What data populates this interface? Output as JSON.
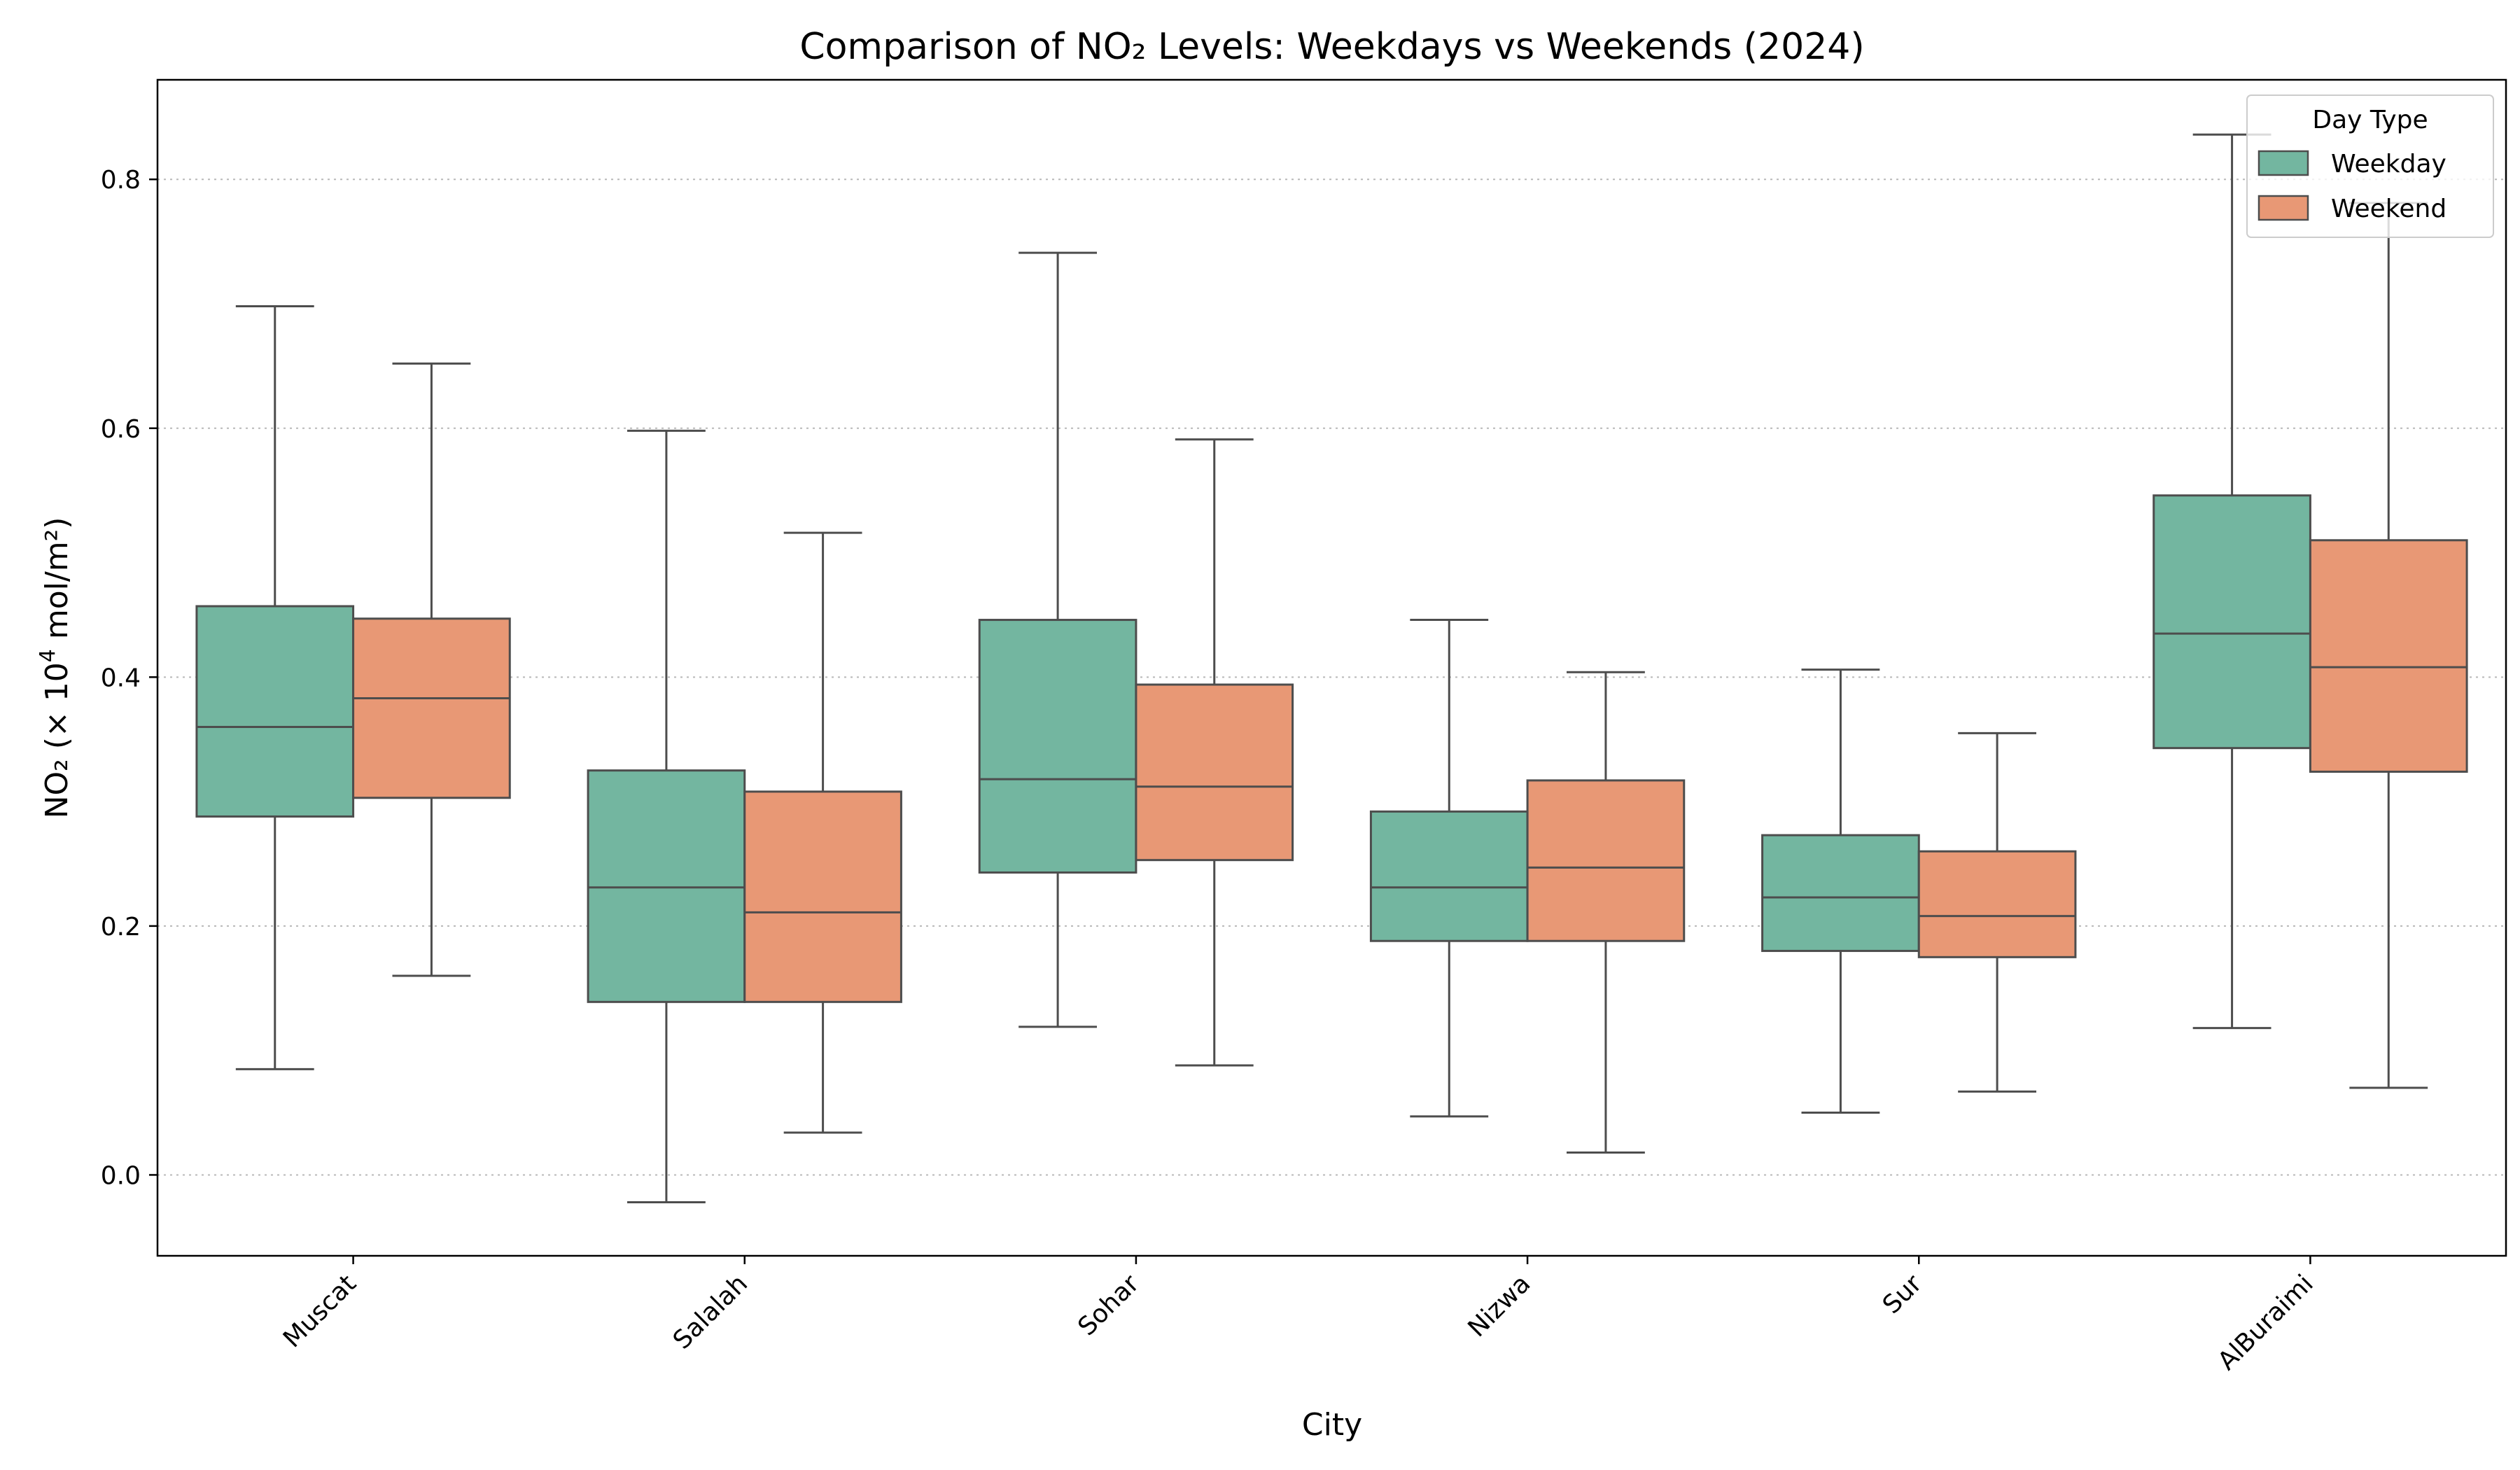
{
  "chart_data": {
    "type": "boxplot",
    "title": "Comparison of NO₂ Levels: Weekdays vs Weekends (2024)",
    "xlabel": "City",
    "ylabel_prefix": "NO₂ (× 10",
    "ylabel_exp": "4",
    "ylabel_suffix": " mol/m²)",
    "ylim": [
      -0.065,
      0.88
    ],
    "yticks": [
      0.0,
      0.2,
      0.4,
      0.6,
      0.8
    ],
    "ytick_labels": [
      "0.0",
      "0.2",
      "0.4",
      "0.6",
      "0.8"
    ],
    "grid": "y, dotted",
    "categories": [
      "Muscat",
      "Salalah",
      "Sohar",
      "Nizwa",
      "Sur",
      "AlBuraimi"
    ],
    "legend": {
      "title": "Day Type",
      "position": "top-right"
    },
    "series": [
      {
        "name": "Weekday",
        "color": "#73b6a0",
        "boxes": [
          {
            "whislo": 0.085,
            "q1": 0.288,
            "med": 0.36,
            "q3": 0.457,
            "whishi": 0.698
          },
          {
            "whislo": -0.022,
            "q1": 0.139,
            "med": 0.231,
            "q3": 0.325,
            "whishi": 0.598
          },
          {
            "whislo": 0.119,
            "q1": 0.243,
            "med": 0.318,
            "q3": 0.446,
            "whishi": 0.741
          },
          {
            "whislo": 0.047,
            "q1": 0.188,
            "med": 0.231,
            "q3": 0.292,
            "whishi": 0.446
          },
          {
            "whislo": 0.05,
            "q1": 0.18,
            "med": 0.223,
            "q3": 0.273,
            "whishi": 0.406
          },
          {
            "whislo": 0.118,
            "q1": 0.343,
            "med": 0.435,
            "q3": 0.546,
            "whishi": 0.836
          }
        ]
      },
      {
        "name": "Weekend",
        "color": "#e89875",
        "boxes": [
          {
            "whislo": 0.16,
            "q1": 0.303,
            "med": 0.383,
            "q3": 0.447,
            "whishi": 0.652
          },
          {
            "whislo": 0.034,
            "q1": 0.139,
            "med": 0.211,
            "q3": 0.308,
            "whishi": 0.516
          },
          {
            "whislo": 0.088,
            "q1": 0.253,
            "med": 0.312,
            "q3": 0.394,
            "whishi": 0.591
          },
          {
            "whislo": 0.018,
            "q1": 0.188,
            "med": 0.247,
            "q3": 0.317,
            "whishi": 0.404
          },
          {
            "whislo": 0.067,
            "q1": 0.175,
            "med": 0.208,
            "q3": 0.26,
            "whishi": 0.355
          },
          {
            "whislo": 0.07,
            "q1": 0.324,
            "med": 0.408,
            "q3": 0.51,
            "whishi": 0.781
          }
        ]
      }
    ]
  }
}
